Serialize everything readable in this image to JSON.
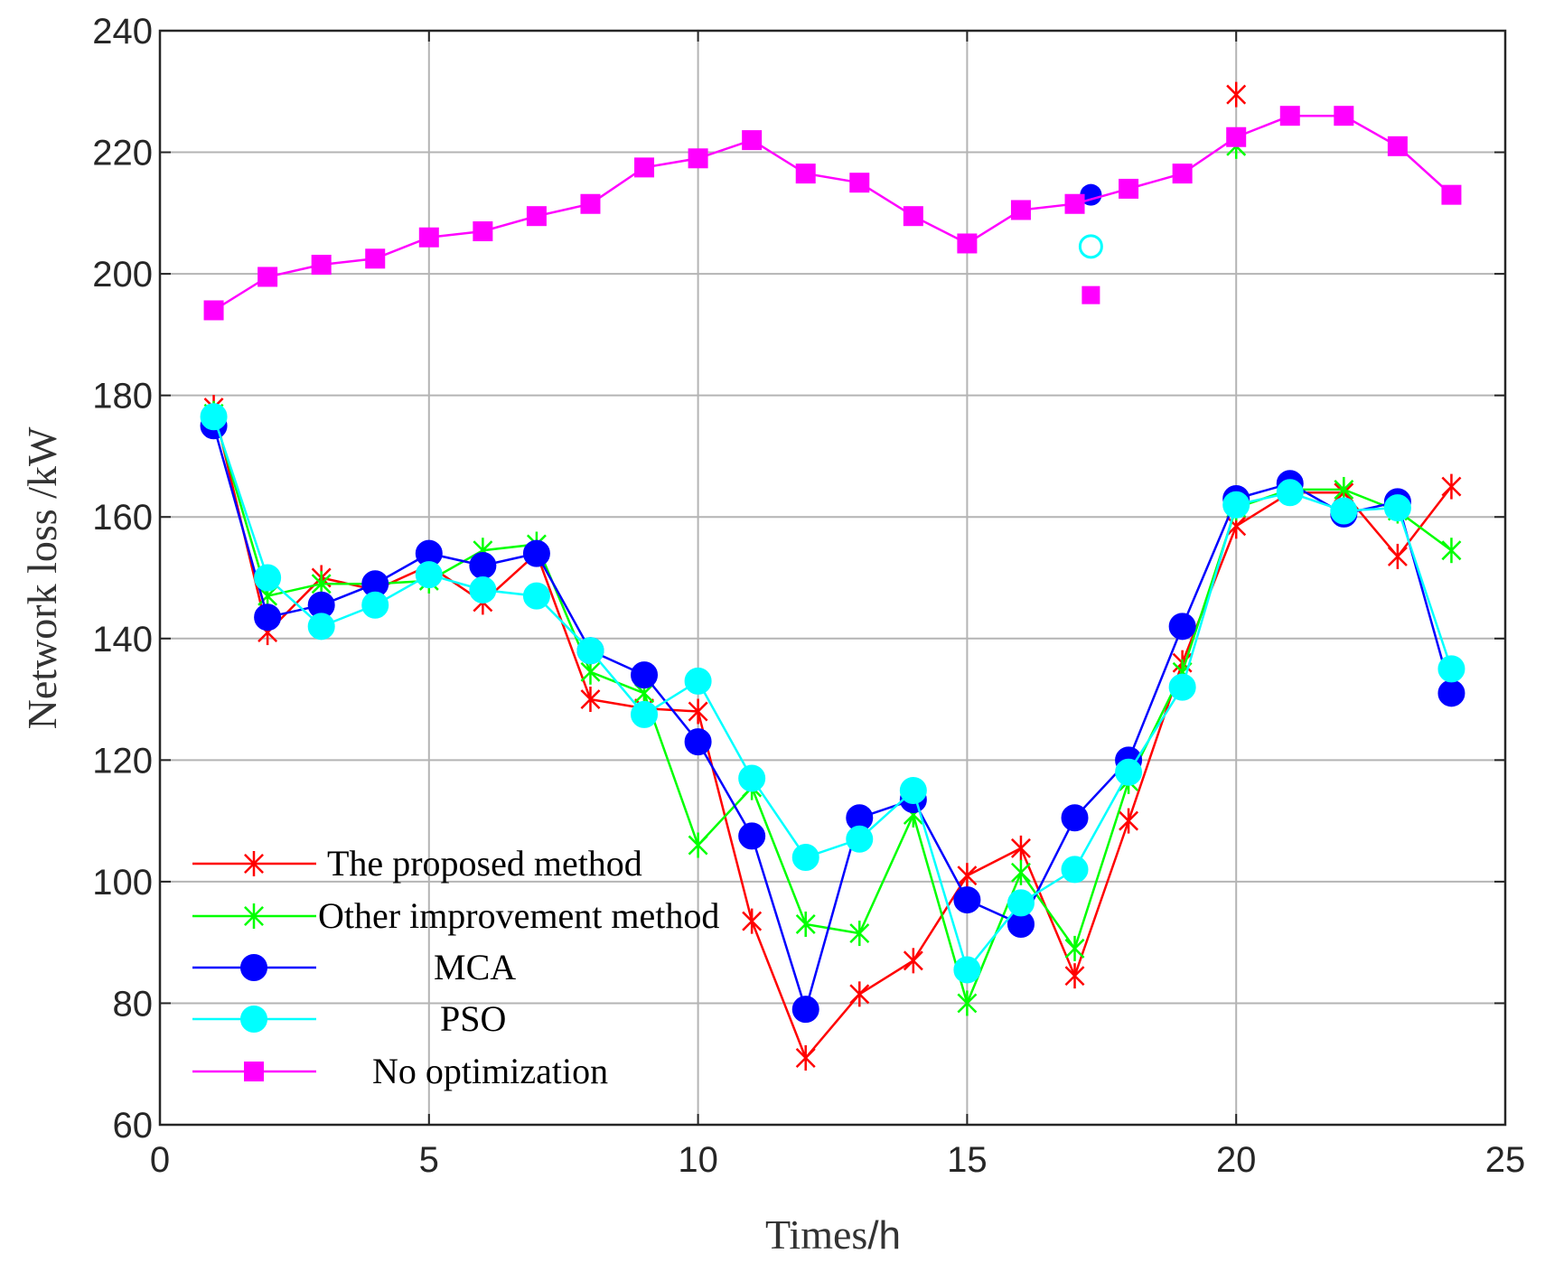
{
  "chart_data": {
    "type": "line",
    "title": "",
    "xlabel": "Times",
    "xlabel_unit": "/h",
    "ylabel": "Network loss /kW",
    "xlim": [
      0,
      25
    ],
    "ylim": [
      60,
      240
    ],
    "xticks": [
      "0",
      "5",
      "10",
      "15",
      "20",
      "25"
    ],
    "yticks": [
      "60",
      "80",
      "100",
      "120",
      "140",
      "160",
      "180",
      "200",
      "220",
      "240"
    ],
    "grid": true,
    "legend_position": "bottom-left",
    "series": [
      {
        "name": "The proposed method",
        "color": "#ff0000",
        "marker": "asterisk",
        "x": [
          1,
          2,
          3,
          4,
          5,
          6,
          7,
          8,
          9,
          10,
          11,
          12,
          13,
          14,
          15,
          16,
          17,
          18,
          19,
          20,
          21,
          22,
          23,
          24
        ],
        "values": [
          178,
          141,
          150,
          148,
          152,
          146,
          154,
          130,
          128.5,
          128,
          93.5,
          71,
          81.5,
          87,
          101,
          105.5,
          84.5,
          110,
          136,
          158.5,
          164,
          164,
          153.5,
          165
        ],
        "outliers": [
          {
            "x": 20,
            "y": 229.5
          }
        ]
      },
      {
        "name": "Other improvement method",
        "color": "#00ff00",
        "marker": "asterisk",
        "x": [
          1,
          2,
          3,
          4,
          5,
          6,
          7,
          8,
          9,
          10,
          11,
          12,
          13,
          14,
          15,
          16,
          17,
          18,
          19,
          20,
          21,
          22,
          23,
          24
        ],
        "values": [
          177,
          147,
          149,
          149,
          149.5,
          154.5,
          155.5,
          134.5,
          131,
          106,
          115.5,
          93,
          91.5,
          111,
          80,
          101.5,
          89,
          116.5,
          134.5,
          161.5,
          164.5,
          164.5,
          161,
          154.5
        ],
        "outliers": [
          {
            "x": 20,
            "y": 221
          }
        ]
      },
      {
        "name": "MCA",
        "color": "#0000ff",
        "marker": "circle",
        "x": [
          1,
          2,
          3,
          4,
          5,
          6,
          7,
          8,
          9,
          10,
          11,
          12,
          13,
          14,
          15,
          16,
          17,
          18,
          19,
          20,
          21,
          22,
          23,
          24
        ],
        "values": [
          175,
          143.5,
          145.5,
          149,
          154,
          152,
          154,
          138,
          134,
          123,
          107.5,
          79,
          110.5,
          113.5,
          97,
          93,
          110.5,
          120,
          142,
          163,
          165.5,
          160.5,
          162.5,
          131
        ],
        "outliers": [
          {
            "x": 17.3,
            "y": 213
          }
        ]
      },
      {
        "name": "PSO",
        "color": "#00ffff",
        "marker": "circle",
        "x": [
          1,
          2,
          3,
          4,
          5,
          6,
          7,
          8,
          9,
          10,
          11,
          12,
          13,
          14,
          15,
          16,
          17,
          18,
          19,
          20,
          21,
          22,
          23,
          24
        ],
        "values": [
          176.5,
          150,
          142,
          145.5,
          150.5,
          148,
          147,
          138,
          127.5,
          133,
          117,
          104,
          107,
          115,
          85.5,
          96.5,
          102,
          118,
          132,
          162,
          164,
          161,
          161.5,
          135
        ],
        "outliers": [
          {
            "x": 17.3,
            "y": 204.5
          }
        ]
      },
      {
        "name": "No optimization",
        "color": "#ff00ff",
        "marker": "square",
        "x": [
          1,
          2,
          3,
          4,
          5,
          6,
          7,
          8,
          9,
          10,
          11,
          12,
          13,
          14,
          15,
          16,
          17,
          18,
          19,
          20,
          21,
          22,
          23,
          24
        ],
        "values": [
          194,
          199.5,
          201.5,
          202.5,
          206,
          207,
          209.5,
          211.5,
          217.5,
          219,
          222,
          216.5,
          215,
          209.5,
          205,
          210.5,
          211.5,
          214,
          216.5,
          222.5,
          226,
          226,
          221,
          213
        ],
        "outliers": [
          {
            "x": 17.3,
            "y": 196.5
          }
        ]
      }
    ]
  }
}
